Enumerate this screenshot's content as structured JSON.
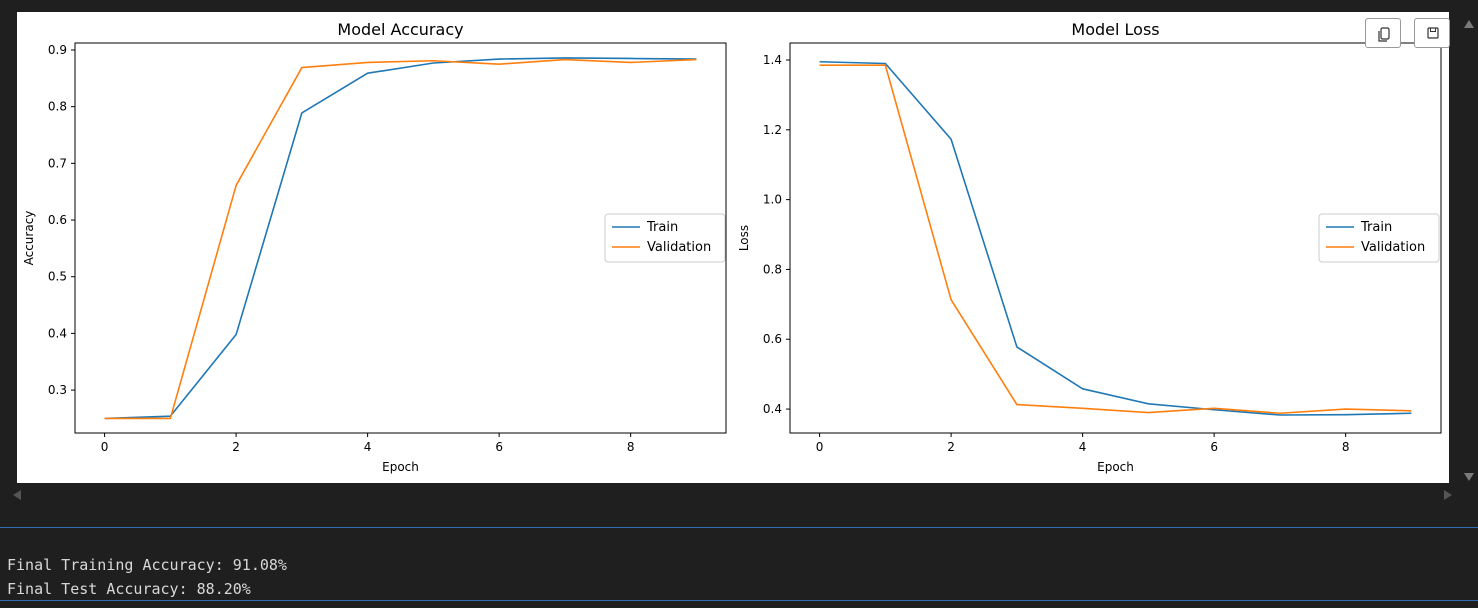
{
  "toolbar": {
    "copy_icon": "copy-icon",
    "save_icon": "save-icon"
  },
  "output": {
    "lines": [
      "Final Training Accuracy: 91.08%",
      "Final Test Accuracy: 88.20%"
    ]
  },
  "chart_data": [
    {
      "type": "line",
      "title": "Model Accuracy",
      "xlabel": "Epoch",
      "ylabel": "Accuracy",
      "x": [
        0,
        1,
        2,
        3,
        4,
        5,
        6,
        7,
        8,
        9
      ],
      "xticks": [
        0,
        2,
        4,
        6,
        8
      ],
      "yticks": [
        0.3,
        0.4,
        0.5,
        0.6,
        0.7,
        0.8,
        0.9
      ],
      "xlim": [
        -0.45,
        9.45
      ],
      "ylim": [
        0.2243,
        0.9123
      ],
      "grid": false,
      "legend": "center-right",
      "series": [
        {
          "name": "Train",
          "color": "#1f77b4",
          "values": [
            0.25,
            0.254,
            0.398,
            0.789,
            0.859,
            0.877,
            0.884,
            0.886,
            0.885,
            0.884
          ]
        },
        {
          "name": "Validation",
          "color": "#ff7f0e",
          "values": [
            0.25,
            0.25,
            0.661,
            0.869,
            0.878,
            0.881,
            0.875,
            0.883,
            0.878,
            0.883
          ]
        }
      ]
    },
    {
      "type": "line",
      "title": "Model Loss",
      "xlabel": "Epoch",
      "ylabel": "Loss",
      "x": [
        0,
        1,
        2,
        3,
        4,
        5,
        6,
        7,
        8,
        9
      ],
      "xticks": [
        0,
        2,
        4,
        6,
        8
      ],
      "yticks": [
        0.4,
        0.6,
        0.8,
        1.0,
        1.2,
        1.4
      ],
      "xlim": [
        -0.45,
        9.45
      ],
      "ylim": [
        0.3314,
        1.4487
      ],
      "grid": false,
      "legend": "center-right",
      "series": [
        {
          "name": "Train",
          "color": "#1f77b4",
          "values": [
            1.395,
            1.39,
            1.173,
            0.578,
            0.458,
            0.415,
            0.398,
            0.383,
            0.384,
            0.388
          ]
        },
        {
          "name": "Validation",
          "color": "#ff7f0e",
          "values": [
            1.385,
            1.385,
            0.713,
            0.413,
            0.402,
            0.39,
            0.402,
            0.388,
            0.4,
            0.395
          ]
        }
      ]
    }
  ]
}
